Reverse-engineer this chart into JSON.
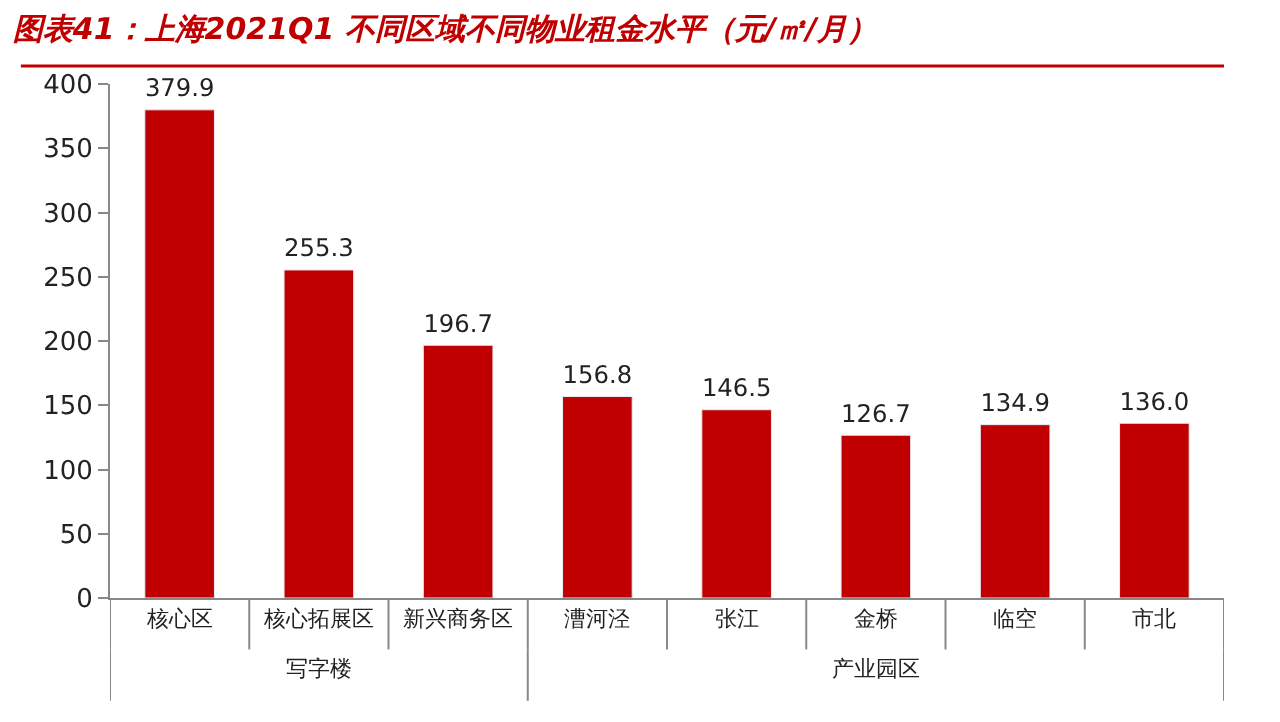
{
  "chart_data": {
    "type": "bar",
    "title": "图表41：上海2021Q1 不同区域不同物业租金水平（元/㎡/月）",
    "categories": [
      "核心区",
      "核心拓展区",
      "新兴商务区",
      "漕河泾",
      "张江",
      "金桥",
      "临空",
      "市北"
    ],
    "values": [
      379.9,
      255.3,
      196.7,
      156.8,
      146.5,
      126.7,
      134.9,
      136.0
    ],
    "value_labels": [
      "379.9",
      "255.3",
      "196.7",
      "156.8",
      "146.5",
      "126.7",
      "134.9",
      "136.0"
    ],
    "color": "#c00000",
    "ylim": [
      0,
      400
    ],
    "yticks": [
      0,
      50,
      100,
      150,
      200,
      250,
      300,
      350,
      400
    ],
    "legend": false,
    "annotations": [
      "写字楼",
      "产业园区"
    ]
  }
}
